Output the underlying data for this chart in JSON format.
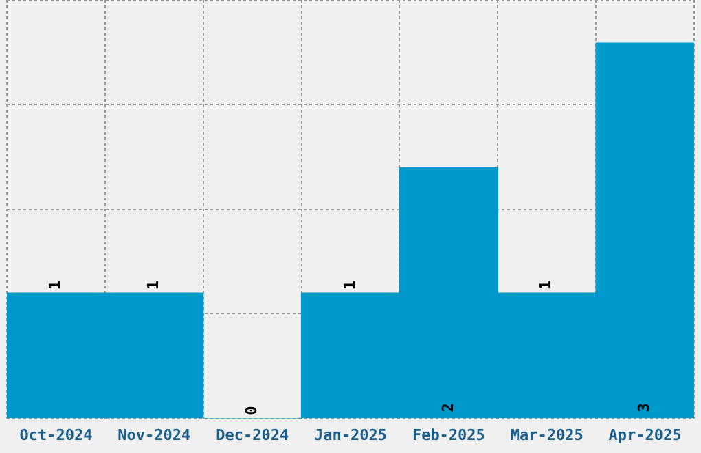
{
  "chart_data": {
    "type": "bar",
    "categories": [
      "Oct-2024",
      "Nov-2024",
      "Dec-2024",
      "Jan-2025",
      "Feb-2025",
      "Mar-2025",
      "Apr-2025"
    ],
    "values": [
      1,
      1,
      0,
      1,
      2,
      1,
      3
    ],
    "color": "#0099cc",
    "data_labels": true,
    "ylim": [
      0,
      3.34
    ],
    "grid": true,
    "tick_labels": "x"
  }
}
